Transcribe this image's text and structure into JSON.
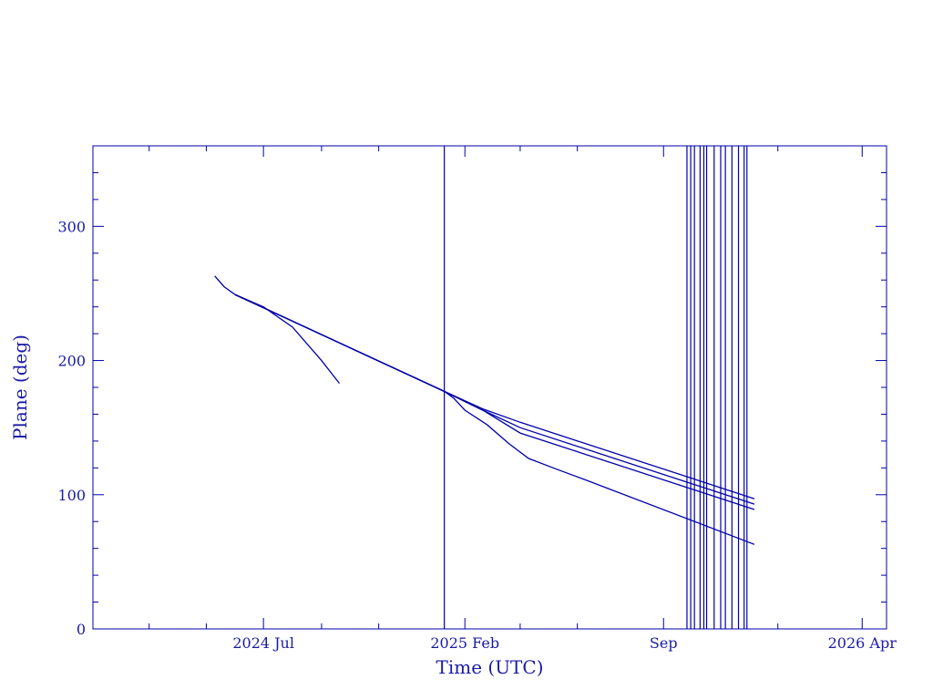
{
  "chart_data": {
    "type": "line",
    "title": "",
    "xlabel": "Time (UTC)",
    "ylabel": "Plane (deg)",
    "color": "#0000aa",
    "x_axis": {
      "kind": "date",
      "range": [
        "2024-01-01",
        "2026-04-27"
      ],
      "tick_labels": [
        {
          "date": "2024-07-01",
          "label": "2024 Jul"
        },
        {
          "date": "2025-02-01",
          "label": "2025 Feb"
        },
        {
          "date": "2025-09-01",
          "label": "Sep"
        },
        {
          "date": "2026-04-01",
          "label": "2026 Apr"
        }
      ],
      "minor_ticks": [
        "2024-03-01",
        "2024-05-01",
        "2024-09-01",
        "2024-11-01",
        "2025-04-01",
        "2025-06-01",
        "2025-11-01",
        "2026-01-01"
      ]
    },
    "y_axis": {
      "range": [
        0,
        360
      ],
      "tick_labels": [
        0,
        100,
        200,
        300
      ],
      "minor_step": 20
    },
    "grid": false,
    "series": [
      {
        "points": [
          [
            "2024-05-10",
            263
          ],
          [
            "2024-05-20",
            255
          ],
          [
            "2024-06-01",
            249
          ],
          [
            "2024-07-01",
            240
          ],
          [
            "2024-08-01",
            225
          ],
          [
            "2024-09-01",
            200
          ],
          [
            "2024-09-20",
            183
          ]
        ]
      },
      {
        "points": [
          [
            "2024-06-01",
            249
          ],
          [
            "2025-01-10",
            177
          ],
          [
            "2025-01-20",
            172
          ],
          [
            "2025-02-01",
            163
          ],
          [
            "2025-02-25",
            152
          ],
          [
            "2025-03-20",
            138
          ],
          [
            "2025-04-10",
            127
          ],
          [
            "2025-05-10",
            119
          ],
          [
            "2025-06-10",
            111
          ],
          [
            "2025-12-07",
            63
          ]
        ]
      },
      {
        "points": [
          [
            "2024-06-01",
            249
          ],
          [
            "2025-01-10",
            177
          ],
          [
            "2025-02-20",
            163
          ],
          [
            "2025-04-01",
            146
          ],
          [
            "2025-12-07",
            89
          ]
        ]
      },
      {
        "points": [
          [
            "2024-06-01",
            249
          ],
          [
            "2025-01-10",
            177
          ],
          [
            "2025-02-20",
            163
          ],
          [
            "2025-04-01",
            150
          ],
          [
            "2025-12-07",
            93
          ]
        ]
      },
      {
        "points": [
          [
            "2024-06-01",
            249
          ],
          [
            "2025-01-10",
            177
          ],
          [
            "2025-02-20",
            164
          ],
          [
            "2025-04-01",
            154
          ],
          [
            "2025-12-07",
            97
          ]
        ]
      }
    ],
    "vertical_markers": [
      "2025-01-10",
      "2025-09-26",
      "2025-09-30",
      "2025-10-04",
      "2025-10-10",
      "2025-10-14",
      "2025-10-17",
      "2025-10-25",
      "2025-11-01",
      "2025-11-06",
      "2025-11-13",
      "2025-11-20",
      "2025-11-26",
      "2025-11-29"
    ]
  }
}
